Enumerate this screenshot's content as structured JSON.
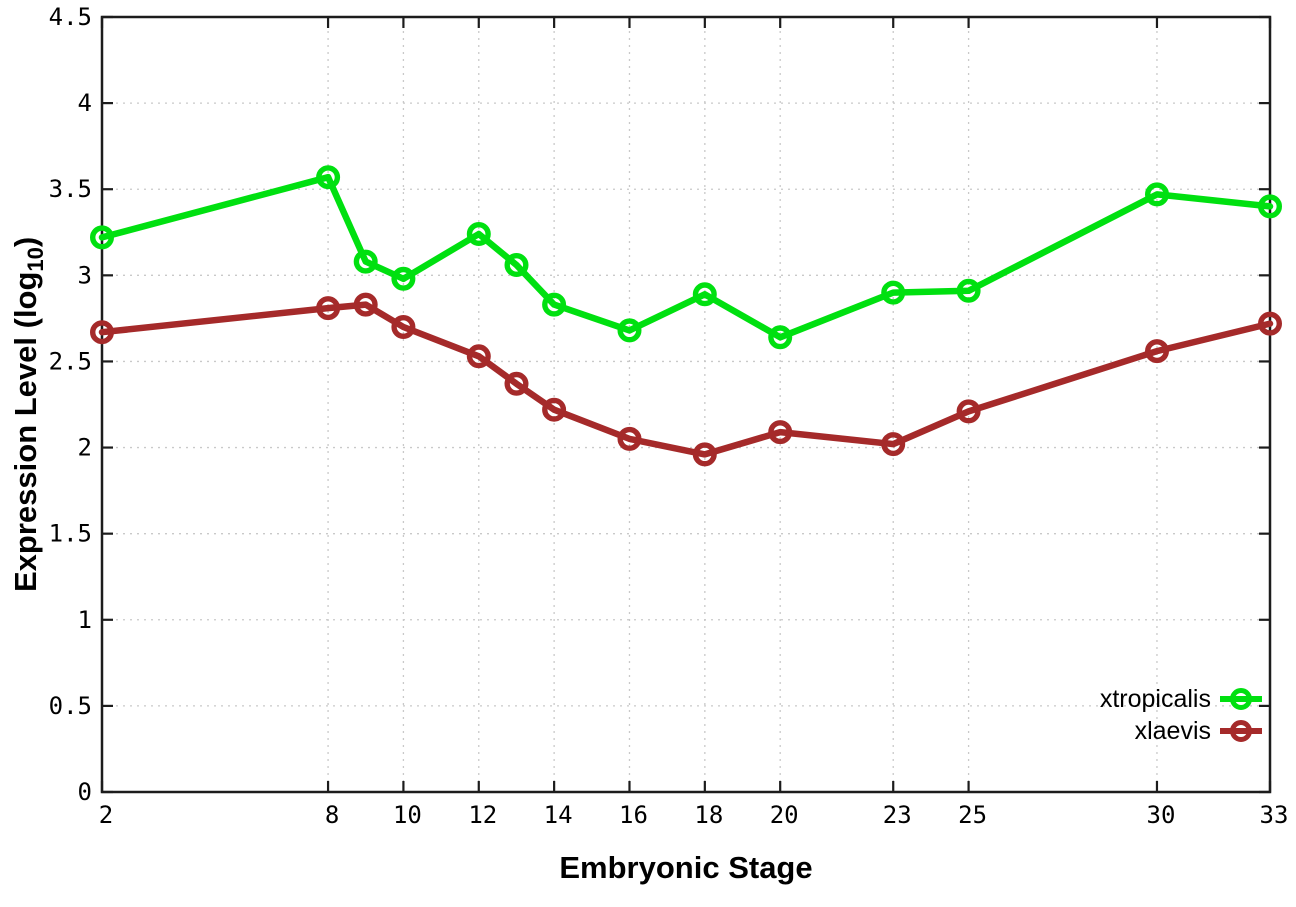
{
  "colors": {
    "background": "#ffffff",
    "axis": "#1c1c1c",
    "grid": "#c9c9c9",
    "tick_text": "#000000"
  },
  "chart_data": {
    "type": "line",
    "title": "",
    "xlabel": "Embryonic Stage",
    "ylabel": "Expression Level (log10)",
    "ylabel_parts": {
      "main": "Expression Level (log",
      "sub": "10",
      "close": ")"
    },
    "xlim": [
      2,
      33
    ],
    "ylim": [
      0,
      4.5
    ],
    "grid": true,
    "legend_position": "bottom-right",
    "x_ticks": [
      2,
      8,
      10,
      12,
      14,
      16,
      18,
      20,
      23,
      25,
      30,
      33
    ],
    "x_tick_labels": [
      "2",
      "8",
      "10",
      "12",
      "14",
      "16",
      "18",
      "20",
      "23",
      "25",
      "30",
      "33"
    ],
    "y_ticks": [
      0,
      0.5,
      1,
      1.5,
      2,
      2.5,
      3,
      3.5,
      4,
      4.5
    ],
    "y_tick_labels": [
      "0",
      "0.5",
      "1",
      "1.5",
      "2",
      "2.5",
      "3",
      "3.5",
      "4",
      "4.5"
    ],
    "x": [
      2,
      8,
      9,
      10,
      12,
      13,
      14,
      16,
      18,
      20,
      23,
      25,
      30,
      33
    ],
    "series": [
      {
        "name": "xtropicalis",
        "color": "#00e010",
        "values": [
          3.22,
          3.57,
          3.08,
          2.98,
          3.24,
          3.06,
          2.83,
          2.68,
          2.89,
          2.64,
          2.9,
          2.91,
          3.47,
          3.4
        ]
      },
      {
        "name": "xlaevis",
        "color": "#a52a2a",
        "values": [
          2.67,
          2.81,
          2.83,
          2.7,
          2.53,
          2.37,
          2.22,
          2.05,
          1.96,
          2.09,
          2.02,
          2.21,
          2.56,
          2.72
        ]
      }
    ]
  }
}
